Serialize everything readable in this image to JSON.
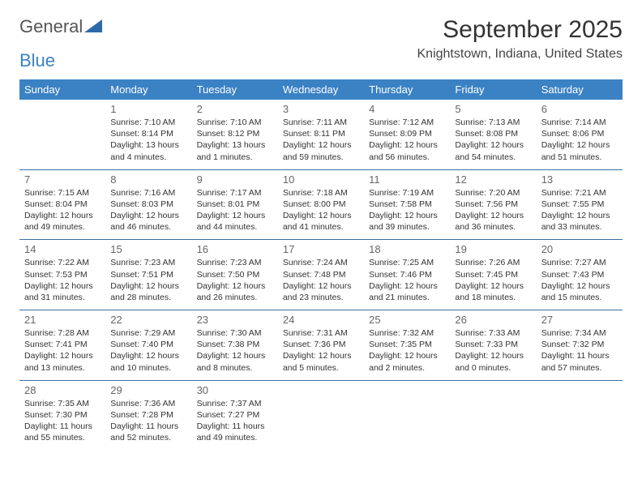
{
  "logo": {
    "text1": "General",
    "text2": "Blue"
  },
  "title": "September 2025",
  "location": "Knightstown, Indiana, United States",
  "colors": {
    "header_bg": "#3b82c4",
    "header_fg": "#ffffff",
    "rule": "#3b6ea0",
    "text": "#333333",
    "daynum": "#666666"
  },
  "daynames": [
    "Sunday",
    "Monday",
    "Tuesday",
    "Wednesday",
    "Thursday",
    "Friday",
    "Saturday"
  ],
  "weeks": [
    [
      null,
      {
        "n": "1",
        "sr": "7:10 AM",
        "ss": "8:14 PM",
        "dl": "13 hours and 4 minutes."
      },
      {
        "n": "2",
        "sr": "7:10 AM",
        "ss": "8:12 PM",
        "dl": "13 hours and 1 minutes."
      },
      {
        "n": "3",
        "sr": "7:11 AM",
        "ss": "8:11 PM",
        "dl": "12 hours and 59 minutes."
      },
      {
        "n": "4",
        "sr": "7:12 AM",
        "ss": "8:09 PM",
        "dl": "12 hours and 56 minutes."
      },
      {
        "n": "5",
        "sr": "7:13 AM",
        "ss": "8:08 PM",
        "dl": "12 hours and 54 minutes."
      },
      {
        "n": "6",
        "sr": "7:14 AM",
        "ss": "8:06 PM",
        "dl": "12 hours and 51 minutes."
      }
    ],
    [
      {
        "n": "7",
        "sr": "7:15 AM",
        "ss": "8:04 PM",
        "dl": "12 hours and 49 minutes."
      },
      {
        "n": "8",
        "sr": "7:16 AM",
        "ss": "8:03 PM",
        "dl": "12 hours and 46 minutes."
      },
      {
        "n": "9",
        "sr": "7:17 AM",
        "ss": "8:01 PM",
        "dl": "12 hours and 44 minutes."
      },
      {
        "n": "10",
        "sr": "7:18 AM",
        "ss": "8:00 PM",
        "dl": "12 hours and 41 minutes."
      },
      {
        "n": "11",
        "sr": "7:19 AM",
        "ss": "7:58 PM",
        "dl": "12 hours and 39 minutes."
      },
      {
        "n": "12",
        "sr": "7:20 AM",
        "ss": "7:56 PM",
        "dl": "12 hours and 36 minutes."
      },
      {
        "n": "13",
        "sr": "7:21 AM",
        "ss": "7:55 PM",
        "dl": "12 hours and 33 minutes."
      }
    ],
    [
      {
        "n": "14",
        "sr": "7:22 AM",
        "ss": "7:53 PM",
        "dl": "12 hours and 31 minutes."
      },
      {
        "n": "15",
        "sr": "7:23 AM",
        "ss": "7:51 PM",
        "dl": "12 hours and 28 minutes."
      },
      {
        "n": "16",
        "sr": "7:23 AM",
        "ss": "7:50 PM",
        "dl": "12 hours and 26 minutes."
      },
      {
        "n": "17",
        "sr": "7:24 AM",
        "ss": "7:48 PM",
        "dl": "12 hours and 23 minutes."
      },
      {
        "n": "18",
        "sr": "7:25 AM",
        "ss": "7:46 PM",
        "dl": "12 hours and 21 minutes."
      },
      {
        "n": "19",
        "sr": "7:26 AM",
        "ss": "7:45 PM",
        "dl": "12 hours and 18 minutes."
      },
      {
        "n": "20",
        "sr": "7:27 AM",
        "ss": "7:43 PM",
        "dl": "12 hours and 15 minutes."
      }
    ],
    [
      {
        "n": "21",
        "sr": "7:28 AM",
        "ss": "7:41 PM",
        "dl": "12 hours and 13 minutes."
      },
      {
        "n": "22",
        "sr": "7:29 AM",
        "ss": "7:40 PM",
        "dl": "12 hours and 10 minutes."
      },
      {
        "n": "23",
        "sr": "7:30 AM",
        "ss": "7:38 PM",
        "dl": "12 hours and 8 minutes."
      },
      {
        "n": "24",
        "sr": "7:31 AM",
        "ss": "7:36 PM",
        "dl": "12 hours and 5 minutes."
      },
      {
        "n": "25",
        "sr": "7:32 AM",
        "ss": "7:35 PM",
        "dl": "12 hours and 2 minutes."
      },
      {
        "n": "26",
        "sr": "7:33 AM",
        "ss": "7:33 PM",
        "dl": "12 hours and 0 minutes."
      },
      {
        "n": "27",
        "sr": "7:34 AM",
        "ss": "7:32 PM",
        "dl": "11 hours and 57 minutes."
      }
    ],
    [
      {
        "n": "28",
        "sr": "7:35 AM",
        "ss": "7:30 PM",
        "dl": "11 hours and 55 minutes."
      },
      {
        "n": "29",
        "sr": "7:36 AM",
        "ss": "7:28 PM",
        "dl": "11 hours and 52 minutes."
      },
      {
        "n": "30",
        "sr": "7:37 AM",
        "ss": "7:27 PM",
        "dl": "11 hours and 49 minutes."
      },
      null,
      null,
      null,
      null
    ]
  ],
  "labels": {
    "sunrise": "Sunrise:",
    "sunset": "Sunset:",
    "daylight": "Daylight:"
  }
}
